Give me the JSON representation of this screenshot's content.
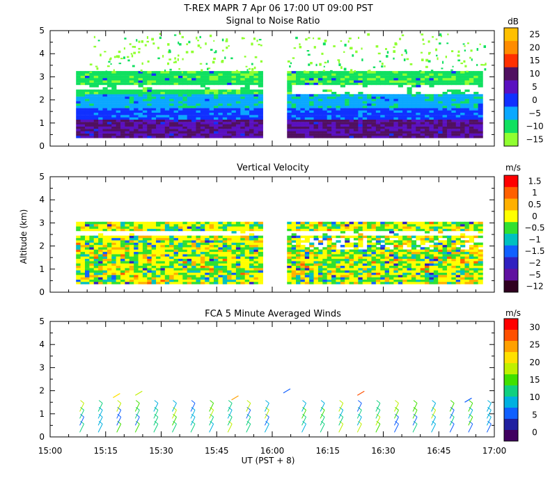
{
  "figure": {
    "header": "T-REX   MAPR   7 Apr 06   17:00 UT   09:00   PST",
    "xlabel": "UT  (PST + 8)",
    "ylabel": "Altitude (km)"
  },
  "chart_data": [
    {
      "type": "heatmap",
      "title": "Signal to Noise Ratio",
      "colorbar_unit": "dB",
      "colorbar_labels": [
        "25",
        "20",
        "15",
        "10",
        "5",
        "0",
        "−5",
        "−10",
        "−15"
      ],
      "colorbar_colors": [
        "#ffc000",
        "#ff8c00",
        "#ff3000",
        "#501060",
        "#5a10c0",
        "#1030ff",
        "#0aa8ff",
        "#10e060",
        "#90ff30"
      ],
      "xticks": [
        "15:00",
        "15:15",
        "15:30",
        "15:45",
        "16:00",
        "16:15",
        "16:30",
        "16:45",
        "17:00"
      ],
      "yticks": [
        "0",
        "1",
        "2",
        "3",
        "4",
        "5"
      ],
      "ylim": [
        0,
        5
      ]
    },
    {
      "type": "heatmap",
      "title": "Vertical Velocity",
      "colorbar_unit": "m/s",
      "colorbar_labels": [
        "1.5",
        "1",
        "0.5",
        "0",
        "−0.5",
        "−1",
        "−1.5",
        "−2",
        "−5",
        "−12"
      ],
      "colorbar_colors": [
        "#ff0000",
        "#ff6000",
        "#ffb000",
        "#ffff00",
        "#30e030",
        "#00c0c0",
        "#1060ff",
        "#3020c0",
        "#6010a0",
        "#300020"
      ],
      "xticks": [
        "15:00",
        "15:15",
        "15:30",
        "15:45",
        "16:00",
        "16:15",
        "16:30",
        "16:45",
        "17:00"
      ],
      "yticks": [
        "0",
        "1",
        "2",
        "3",
        "4",
        "5"
      ],
      "ylim": [
        0,
        5
      ]
    },
    {
      "type": "scatter",
      "title": "FCA 5 Minute Averaged Winds",
      "colorbar_unit": "m/s",
      "colorbar_labels": [
        "30",
        "25",
        "20",
        "15",
        "10",
        "5",
        "0"
      ],
      "colorbar_colors": [
        "#ff0000",
        "#ff5000",
        "#ffa000",
        "#ffe000",
        "#c0f000",
        "#40e000",
        "#10d080",
        "#00b0e0",
        "#1060ff",
        "#2020a0",
        "#400060"
      ],
      "xticks": [
        "15:00",
        "15:15",
        "15:30",
        "15:45",
        "16:00",
        "16:15",
        "16:30",
        "16:45",
        "17:00"
      ],
      "yticks": [
        "0",
        "1",
        "2",
        "3",
        "4",
        "5"
      ],
      "ylim": [
        0,
        5
      ]
    }
  ]
}
